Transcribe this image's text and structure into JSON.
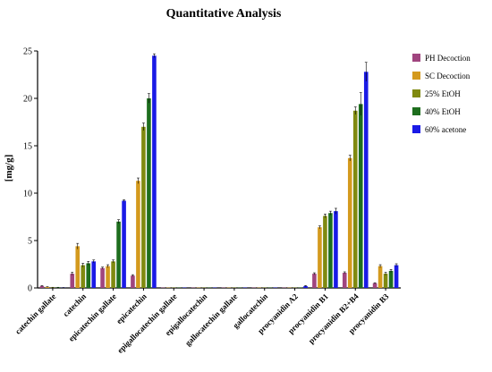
{
  "chart_data": {
    "type": "bar",
    "title": "Quantitative Analysis",
    "ylabel": "[mg/g]",
    "xlabel": "",
    "ylim": [
      0,
      25
    ],
    "yticks": [
      0,
      5,
      10,
      15,
      20,
      25
    ],
    "grid": false,
    "legend_position": "right",
    "categories": [
      "catechin gallate",
      "catechin",
      "epicatechin gallate",
      "epicatechin",
      "epigallocatechin gallate",
      "epigallocatechin",
      "gallocatechin gallate",
      "gallocatechin",
      "procyanidin A2",
      "procyanidin B1",
      "procyanidin B2+B4",
      "procyanidin B3"
    ],
    "series": [
      {
        "name": "PH Decoction",
        "color": "#a0457f",
        "values": [
          0.2,
          1.5,
          2.1,
          1.3,
          0.02,
          0.02,
          0.02,
          0.02,
          0.02,
          1.5,
          1.6,
          0.5
        ],
        "errors": [
          0.05,
          0.15,
          0.1,
          0.1,
          0,
          0,
          0,
          0,
          0,
          0.1,
          0.1,
          0.05
        ]
      },
      {
        "name": "SC Decoction",
        "color": "#d49a1e",
        "values": [
          0.1,
          4.4,
          2.3,
          11.3,
          0.02,
          0.02,
          0.02,
          0.02,
          0.02,
          6.4,
          13.7,
          2.3
        ],
        "errors": [
          0.03,
          0.3,
          0.15,
          0.3,
          0,
          0,
          0,
          0,
          0,
          0.15,
          0.3,
          0.15
        ]
      },
      {
        "name": "25% EtOH",
        "color": "#808a10",
        "values": [
          0.05,
          2.4,
          2.8,
          17.0,
          0.02,
          0.02,
          0.02,
          0.02,
          0.02,
          7.6,
          18.7,
          1.5
        ],
        "errors": [
          0.02,
          0.2,
          0.15,
          0.4,
          0,
          0,
          0,
          0,
          0,
          0.2,
          0.4,
          0.15
        ]
      },
      {
        "name": "40% EtOH",
        "color": "#1e6e1e",
        "values": [
          0.05,
          2.6,
          7.0,
          20.0,
          0.02,
          0.02,
          0.02,
          0.02,
          0.02,
          7.9,
          19.4,
          1.8
        ],
        "errors": [
          0.02,
          0.2,
          0.2,
          0.5,
          0,
          0,
          0,
          0,
          0,
          0.2,
          1.2,
          0.15
        ]
      },
      {
        "name": "60% acetone",
        "color": "#1a1ae6",
        "values": [
          0.03,
          2.8,
          9.2,
          24.5,
          0.02,
          0.02,
          0.02,
          0.02,
          0.2,
          8.1,
          22.8,
          2.4
        ],
        "errors": [
          0.01,
          0.15,
          0.1,
          0.2,
          0,
          0,
          0,
          0,
          0.05,
          0.3,
          1.0,
          0.15
        ]
      }
    ]
  }
}
